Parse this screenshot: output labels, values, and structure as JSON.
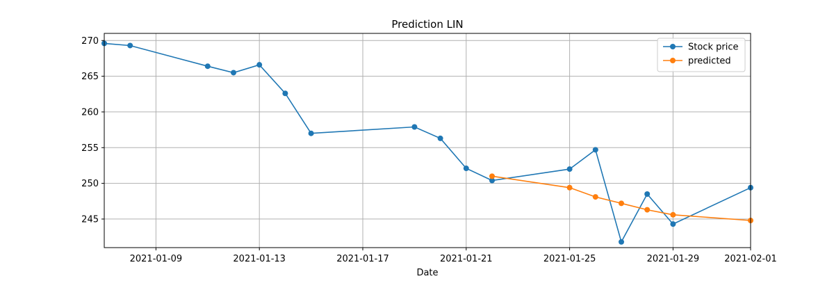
{
  "chart_data": {
    "type": "line",
    "title": "Prediction LIN",
    "xlabel": "Date",
    "ylabel": "",
    "x_type": "date",
    "xlim": [
      "2021-01-07",
      "2021-02-01"
    ],
    "ylim": [
      241.0,
      271.0
    ],
    "x_ticks": [
      "2021-01-09",
      "2021-01-13",
      "2021-01-17",
      "2021-01-21",
      "2021-01-25",
      "2021-01-29",
      "2021-02-01"
    ],
    "y_ticks": [
      245,
      250,
      255,
      260,
      265,
      270
    ],
    "grid": true,
    "legend_position": "top-right",
    "series": [
      {
        "name": "Stock price",
        "color": "#1f77b4",
        "marker": "circle",
        "points": [
          {
            "x": "2021-01-07",
            "y": 269.6
          },
          {
            "x": "2021-01-08",
            "y": 269.3
          },
          {
            "x": "2021-01-11",
            "y": 266.4
          },
          {
            "x": "2021-01-12",
            "y": 265.5
          },
          {
            "x": "2021-01-13",
            "y": 266.6
          },
          {
            "x": "2021-01-14",
            "y": 262.6
          },
          {
            "x": "2021-01-15",
            "y": 257.0
          },
          {
            "x": "2021-01-19",
            "y": 257.9
          },
          {
            "x": "2021-01-20",
            "y": 256.3
          },
          {
            "x": "2021-01-21",
            "y": 252.1
          },
          {
            "x": "2021-01-22",
            "y": 250.4
          },
          {
            "x": "2021-01-25",
            "y": 252.0
          },
          {
            "x": "2021-01-26",
            "y": 254.7
          },
          {
            "x": "2021-01-27",
            "y": 241.8
          },
          {
            "x": "2021-01-28",
            "y": 248.5
          },
          {
            "x": "2021-01-29",
            "y": 244.3
          },
          {
            "x": "2021-02-01",
            "y": 249.4
          }
        ]
      },
      {
        "name": "predicted",
        "color": "#ff7f0e",
        "marker": "circle",
        "points": [
          {
            "x": "2021-01-22",
            "y": 251.0
          },
          {
            "x": "2021-01-25",
            "y": 249.4
          },
          {
            "x": "2021-01-26",
            "y": 248.1
          },
          {
            "x": "2021-01-27",
            "y": 247.2
          },
          {
            "x": "2021-01-28",
            "y": 246.3
          },
          {
            "x": "2021-01-29",
            "y": 245.6
          },
          {
            "x": "2021-02-01",
            "y": 244.8
          }
        ]
      }
    ]
  }
}
